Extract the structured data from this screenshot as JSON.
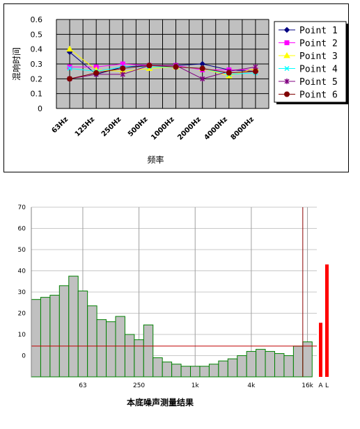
{
  "chart_data": [
    {
      "type": "line",
      "xlabel": "频率",
      "ylabel": "混响时间",
      "categories": [
        "63Hz",
        "125Hz",
        "250Hz",
        "500Hz",
        "1000Hz",
        "2000Hz",
        "4000Hz",
        "8000Hz"
      ],
      "ylim": [
        0,
        0.6
      ],
      "yticks": [
        "0",
        "0.1",
        "0.2",
        "0.3",
        "0.4",
        "0.5",
        "0.6"
      ],
      "grid": true,
      "background": "#c0c0c0",
      "legend_position": "right",
      "series": [
        {
          "name": "Point 1",
          "color": "#000080",
          "marker": "diamond",
          "values": [
            0.38,
            0.23,
            0.28,
            0.29,
            0.29,
            0.3,
            0.26,
            0.25
          ]
        },
        {
          "name": "Point 2",
          "color": "#ff00ff",
          "marker": "square",
          "values": [
            0.28,
            0.28,
            0.3,
            0.29,
            0.29,
            0.26,
            0.26,
            0.26
          ]
        },
        {
          "name": "Point 3",
          "color": "#ffff00",
          "marker": "triangle",
          "values": [
            0.4,
            0.26,
            0.25,
            0.27,
            0.28,
            0.27,
            0.22,
            0.27
          ]
        },
        {
          "name": "Point 4",
          "color": "#00ffff",
          "marker": "x",
          "values": [
            0.27,
            0.25,
            0.28,
            0.28,
            0.28,
            0.27,
            0.23,
            0.24
          ]
        },
        {
          "name": "Point 5",
          "color": "#800080",
          "marker": "star",
          "values": [
            0.2,
            0.23,
            0.23,
            0.29,
            0.29,
            0.2,
            0.25,
            0.28
          ]
        },
        {
          "name": "Point 6",
          "color": "#800000",
          "marker": "circle",
          "values": [
            0.2,
            0.24,
            0.27,
            0.29,
            0.28,
            0.27,
            0.24,
            0.25
          ]
        }
      ]
    },
    {
      "type": "bar",
      "title": "本底噪声测量结果",
      "ylim": [
        -10,
        70
      ],
      "yticks": [
        "70",
        "60",
        "50",
        "40",
        "30",
        "20",
        "10",
        "0"
      ],
      "xtick_labels": [
        {
          "label": "63",
          "band": 5
        },
        {
          "label": "250",
          "band": 11
        },
        {
          "label": "1k",
          "band": 17
        },
        {
          "label": "4k",
          "band": 23
        },
        {
          "label": "16k",
          "band": 29
        }
      ],
      "bar_color": "#c0c0c0",
      "bar_edge": "#008000",
      "values": [
        26.5,
        27.5,
        28.5,
        33,
        37.5,
        30.5,
        23.5,
        17,
        16,
        18.5,
        10,
        7.5,
        14.5,
        -1,
        -3,
        -4,
        -5,
        -5,
        -5,
        -4,
        -2.5,
        -1.5,
        0,
        2,
        3,
        2,
        1,
        0,
        4.5,
        6.5
      ],
      "reference_line": 4.5,
      "marker_band": 28.5,
      "summary_labels": [
        "A",
        "L"
      ],
      "summary_values": [
        15.5,
        43
      ],
      "summary_color": "#ff0000",
      "caption": "本底噪声测量结果"
    }
  ]
}
